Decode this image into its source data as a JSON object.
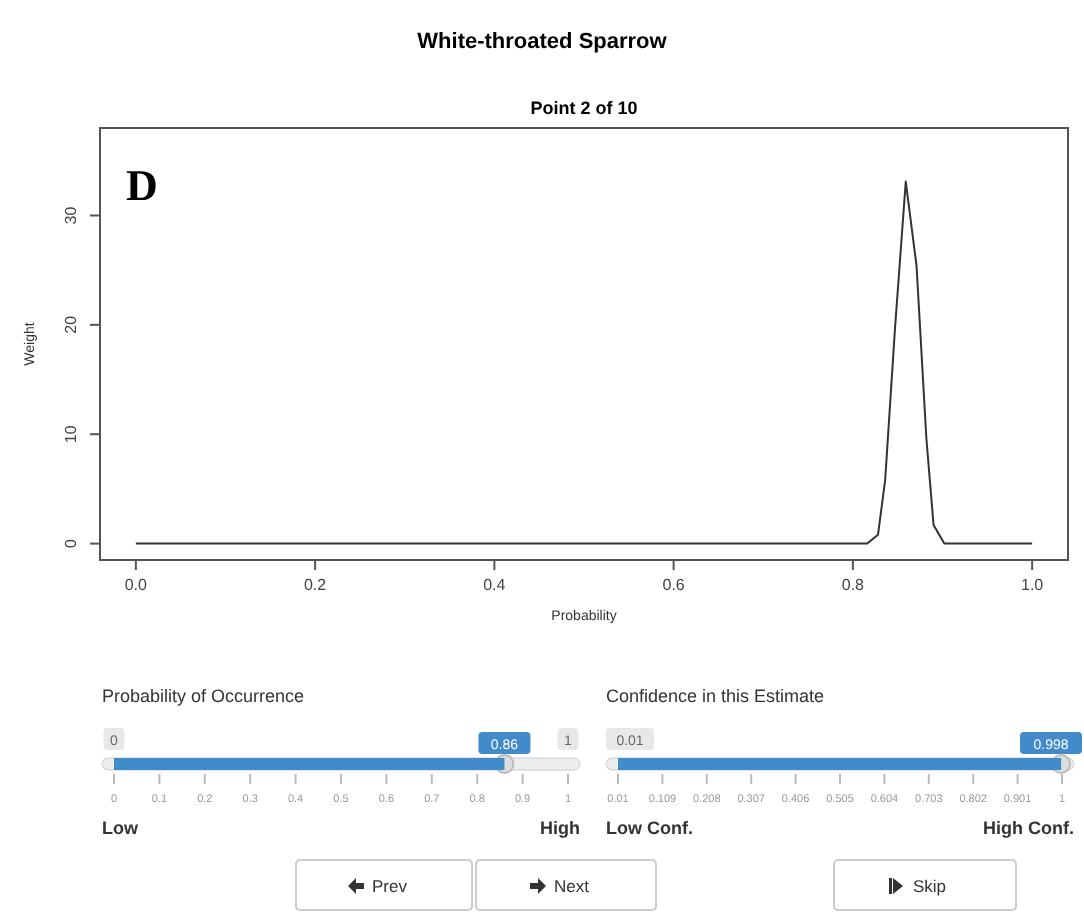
{
  "chart_data": [
    {
      "type": "line",
      "title": "White-throated Sparrow",
      "subtitle": "Point 2 of 10",
      "xlabel": "Probability",
      "ylabel": "Weight",
      "annotations": [
        "D"
      ],
      "color": "#333333",
      "x": [
        0,
        0.8,
        0.816,
        0.828,
        0.836,
        0.847,
        0.859,
        0.871,
        0.882,
        0.89,
        0.902,
        1.0
      ],
      "values": [
        0,
        0,
        0,
        0.8,
        5.8,
        19.7,
        33.1,
        25.4,
        9.6,
        1.7,
        0,
        0
      ],
      "xlim": [
        -0.04,
        1.04
      ],
      "ylim": [
        -1.5,
        38
      ],
      "xticks": [
        {
          "value": 0,
          "label": "0.0"
        },
        {
          "value": 0.2,
          "label": "0.2"
        },
        {
          "value": 0.4,
          "label": "0.4"
        },
        {
          "value": 0.6,
          "label": "0.6"
        },
        {
          "value": 0.8,
          "label": "0.8"
        },
        {
          "value": 1,
          "label": "1.0"
        }
      ],
      "yticks": [
        0,
        10,
        20,
        30
      ]
    },
    {
      "type": "bar",
      "orientation": "horizontal",
      "title": "Probability of Occurrence",
      "color": "#428bca",
      "categories": [
        null
      ],
      "xlim": [
        0,
        1
      ],
      "xticks": [
        0,
        0.1,
        0.2,
        0.3,
        0.4,
        0.5,
        0.6,
        0.7,
        0.8,
        0.9,
        1
      ],
      "x2lim": [
        0,
        1
      ],
      "x2ticks": [
        0,
        1
      ],
      "values": [
        0.86
      ],
      "data_labels": true,
      "annotations": [
        "Low",
        "High"
      ]
    },
    {
      "type": "bar",
      "orientation": "horizontal",
      "title": "Confidence in this Estimate",
      "color": "#428bca",
      "categories": [
        null
      ],
      "xlim": [
        0.01,
        1
      ],
      "xticks": [
        0.01,
        0.109,
        0.208,
        0.307,
        0.406,
        0.505,
        0.604,
        0.703,
        0.802,
        0.901,
        1
      ],
      "base": [
        0.01
      ],
      "values": [
        0.988
      ],
      "value_labels": [
        "0.998"
      ],
      "annotations": [
        "Low Conf.",
        "High Conf.",
        "0.01"
      ]
    },
    {
      "type": "other",
      "annotations": [
        "Prev",
        "Next",
        "Skip"
      ]
    }
  ]
}
